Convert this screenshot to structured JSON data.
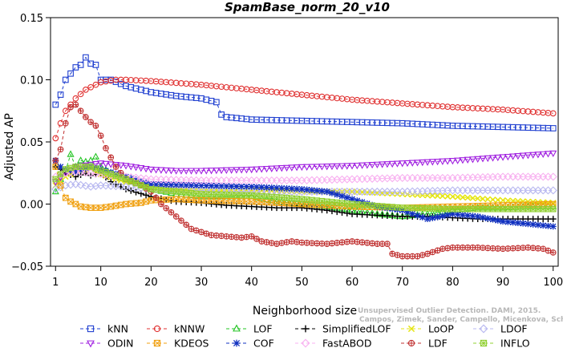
{
  "chart_data": {
    "type": "line",
    "title": "SpamBase_norm_20_v10",
    "xlabel": "Neighborhood size",
    "ylabel": "Adjusted AP",
    "xlim": [
      0,
      101
    ],
    "ylim": [
      -0.05,
      0.15
    ],
    "xticks": [
      1,
      10,
      20,
      30,
      40,
      50,
      60,
      70,
      80,
      90,
      100
    ],
    "yticks": [
      -0.05,
      0.0,
      0.05,
      0.1,
      0.15
    ],
    "ytick_labels": [
      "−0.05",
      "0.00",
      "0.05",
      "0.10",
      "0.15"
    ],
    "legend_position": "bottom",
    "watermark": "Campos, Zimek, Sander, Campello, Micenkova, Schubert, Assent, Houle",
    "watermark_line1": "Unsupervised Outlier Detection. DAMI, 2015.",
    "series": [
      {
        "name": "kNN",
        "color": "#1f3fd0",
        "marker": "square",
        "dash": "4,3",
        "points": [
          [
            1,
            0.08
          ],
          [
            2,
            0.088
          ],
          [
            3,
            0.1
          ],
          [
            4,
            0.105
          ],
          [
            5,
            0.11
          ],
          [
            6,
            0.112
          ],
          [
            7,
            0.118
          ],
          [
            8,
            0.113
          ],
          [
            9,
            0.112
          ],
          [
            10,
            0.1
          ],
          [
            12,
            0.1
          ],
          [
            15,
            0.095
          ],
          [
            20,
            0.09
          ],
          [
            25,
            0.087
          ],
          [
            30,
            0.085
          ],
          [
            33,
            0.082
          ],
          [
            34,
            0.072
          ],
          [
            35,
            0.07
          ],
          [
            40,
            0.068
          ],
          [
            50,
            0.067
          ],
          [
            60,
            0.066
          ],
          [
            70,
            0.065
          ],
          [
            80,
            0.063
          ],
          [
            90,
            0.062
          ],
          [
            100,
            0.061
          ]
        ]
      },
      {
        "name": "kNNW",
        "color": "#e03030",
        "marker": "circle",
        "dash": "4,3",
        "points": [
          [
            1,
            0.053
          ],
          [
            2,
            0.065
          ],
          [
            3,
            0.075
          ],
          [
            4,
            0.08
          ],
          [
            5,
            0.085
          ],
          [
            7,
            0.092
          ],
          [
            10,
            0.098
          ],
          [
            13,
            0.1
          ],
          [
            15,
            0.1
          ],
          [
            20,
            0.099
          ],
          [
            30,
            0.096
          ],
          [
            40,
            0.092
          ],
          [
            50,
            0.088
          ],
          [
            60,
            0.084
          ],
          [
            70,
            0.081
          ],
          [
            80,
            0.078
          ],
          [
            90,
            0.076
          ],
          [
            100,
            0.073
          ]
        ]
      },
      {
        "name": "LOF",
        "color": "#22c422",
        "marker": "triangle",
        "dash": "4,3",
        "points": [
          [
            1,
            0.01
          ],
          [
            2,
            0.02
          ],
          [
            3,
            0.027
          ],
          [
            4,
            0.04
          ],
          [
            5,
            0.03
          ],
          [
            6,
            0.035
          ],
          [
            7,
            0.034
          ],
          [
            8,
            0.035
          ],
          [
            9,
            0.038
          ],
          [
            10,
            0.03
          ],
          [
            12,
            0.025
          ],
          [
            15,
            0.02
          ],
          [
            20,
            0.012
          ],
          [
            25,
            0.008
          ],
          [
            30,
            0.006
          ],
          [
            35,
            0.006
          ],
          [
            40,
            0.006
          ],
          [
            45,
            0.002
          ],
          [
            50,
            0.0
          ],
          [
            55,
            -0.002
          ],
          [
            60,
            -0.005
          ],
          [
            65,
            -0.008
          ],
          [
            70,
            -0.01
          ],
          [
            75,
            -0.008
          ],
          [
            80,
            -0.005
          ],
          [
            85,
            -0.003
          ],
          [
            90,
            -0.003
          ],
          [
            95,
            -0.002
          ],
          [
            100,
            -0.002
          ]
        ]
      },
      {
        "name": "SimplifiedLOF",
        "color": "#000000",
        "marker": "plus",
        "dash": "4,3",
        "points": [
          [
            1,
            0.03
          ],
          [
            2,
            0.028
          ],
          [
            3,
            0.025
          ],
          [
            5,
            0.022
          ],
          [
            7,
            0.025
          ],
          [
            8,
            0.023
          ],
          [
            10,
            0.025
          ],
          [
            12,
            0.018
          ],
          [
            15,
            0.012
          ],
          [
            20,
            0.006
          ],
          [
            25,
            0.002
          ],
          [
            30,
            0.001
          ],
          [
            35,
            -0.001
          ],
          [
            40,
            -0.002
          ],
          [
            45,
            -0.003
          ],
          [
            50,
            -0.003
          ],
          [
            55,
            -0.005
          ],
          [
            60,
            -0.008
          ],
          [
            65,
            -0.009
          ],
          [
            70,
            -0.01
          ],
          [
            75,
            -0.01
          ],
          [
            80,
            -0.011
          ],
          [
            85,
            -0.012
          ],
          [
            90,
            -0.012
          ],
          [
            95,
            -0.012
          ],
          [
            100,
            -0.012
          ]
        ]
      },
      {
        "name": "LoOP",
        "color": "#e5e510",
        "marker": "x",
        "dash": "4,3",
        "points": [
          [
            1,
            0.015
          ],
          [
            3,
            0.022
          ],
          [
            5,
            0.026
          ],
          [
            8,
            0.028
          ],
          [
            10,
            0.024
          ],
          [
            15,
            0.018
          ],
          [
            20,
            0.013
          ],
          [
            25,
            0.012
          ],
          [
            30,
            0.011
          ],
          [
            40,
            0.011
          ],
          [
            50,
            0.01
          ],
          [
            60,
            0.01
          ],
          [
            70,
            0.008
          ],
          [
            80,
            0.006
          ],
          [
            90,
            0.003
          ],
          [
            100,
            0.001
          ]
        ]
      },
      {
        "name": "LDOF",
        "color": "#b8b8f0",
        "marker": "diamond",
        "dash": "4,3",
        "points": [
          [
            1,
            0.012
          ],
          [
            3,
            0.015
          ],
          [
            5,
            0.016
          ],
          [
            8,
            0.014
          ],
          [
            10,
            0.015
          ],
          [
            15,
            0.014
          ],
          [
            20,
            0.012
          ],
          [
            30,
            0.011
          ],
          [
            40,
            0.01
          ],
          [
            50,
            0.01
          ],
          [
            60,
            0.01
          ],
          [
            70,
            0.01
          ],
          [
            80,
            0.011
          ],
          [
            90,
            0.011
          ],
          [
            100,
            0.011
          ]
        ]
      },
      {
        "name": "ODIN",
        "color": "#a020e0",
        "marker": "triangle-down",
        "dash": "4,3",
        "points": [
          [
            1,
            0.018
          ],
          [
            3,
            0.025
          ],
          [
            5,
            0.03
          ],
          [
            8,
            0.032
          ],
          [
            10,
            0.033
          ],
          [
            15,
            0.031
          ],
          [
            20,
            0.028
          ],
          [
            25,
            0.027
          ],
          [
            30,
            0.027
          ],
          [
            40,
            0.028
          ],
          [
            50,
            0.03
          ],
          [
            60,
            0.031
          ],
          [
            70,
            0.033
          ],
          [
            80,
            0.035
          ],
          [
            90,
            0.038
          ],
          [
            100,
            0.041
          ]
        ]
      },
      {
        "name": "KDEOS",
        "color": "#f0a010",
        "marker": "square-x",
        "dash": "4,3",
        "points": [
          [
            1,
            0.03
          ],
          [
            2,
            0.015
          ],
          [
            3,
            0.005
          ],
          [
            4,
            0.002
          ],
          [
            5,
            0.0
          ],
          [
            6,
            -0.002
          ],
          [
            8,
            -0.003
          ],
          [
            10,
            -0.003
          ],
          [
            12,
            -0.002
          ],
          [
            15,
            0.0
          ],
          [
            18,
            0.001
          ],
          [
            20,
            0.003
          ],
          [
            25,
            0.004
          ],
          [
            30,
            0.003
          ],
          [
            40,
            0.002
          ],
          [
            50,
            0.0
          ],
          [
            60,
            -0.002
          ],
          [
            70,
            -0.003
          ],
          [
            80,
            -0.002
          ],
          [
            90,
            -0.001
          ],
          [
            100,
            0.0
          ]
        ]
      },
      {
        "name": "COF",
        "color": "#1030c0",
        "marker": "star",
        "dash": "4,3",
        "points": [
          [
            1,
            0.035
          ],
          [
            2,
            0.03
          ],
          [
            3,
            0.028
          ],
          [
            5,
            0.026
          ],
          [
            8,
            0.03
          ],
          [
            10,
            0.028
          ],
          [
            15,
            0.022
          ],
          [
            20,
            0.016
          ],
          [
            30,
            0.015
          ],
          [
            40,
            0.014
          ],
          [
            50,
            0.012
          ],
          [
            55,
            0.01
          ],
          [
            60,
            0.004
          ],
          [
            65,
            -0.002
          ],
          [
            70,
            -0.005
          ],
          [
            75,
            -0.012
          ],
          [
            80,
            -0.008
          ],
          [
            85,
            -0.01
          ],
          [
            90,
            -0.014
          ],
          [
            95,
            -0.016
          ],
          [
            100,
            -0.018
          ]
        ]
      },
      {
        "name": "FastABOD",
        "color": "#f8b0f0",
        "marker": "diamond",
        "dash": "4,3",
        "points": [
          [
            1,
            0.022
          ],
          [
            3,
            0.025
          ],
          [
            5,
            0.026
          ],
          [
            8,
            0.025
          ],
          [
            10,
            0.024
          ],
          [
            15,
            0.022
          ],
          [
            20,
            0.02
          ],
          [
            30,
            0.019
          ],
          [
            40,
            0.019
          ],
          [
            50,
            0.019
          ],
          [
            60,
            0.02
          ],
          [
            70,
            0.021
          ],
          [
            80,
            0.021
          ],
          [
            90,
            0.022
          ],
          [
            100,
            0.022
          ]
        ]
      },
      {
        "name": "LDF",
        "color": "#c03030",
        "marker": "circle-plus",
        "dash": "4,3",
        "points": [
          [
            1,
            0.035
          ],
          [
            2,
            0.044
          ],
          [
            3,
            0.065
          ],
          [
            4,
            0.078
          ],
          [
            5,
            0.08
          ],
          [
            6,
            0.075
          ],
          [
            7,
            0.07
          ],
          [
            8,
            0.066
          ],
          [
            9,
            0.063
          ],
          [
            10,
            0.055
          ],
          [
            11,
            0.045
          ],
          [
            13,
            0.03
          ],
          [
            15,
            0.02
          ],
          [
            18,
            0.015
          ],
          [
            20,
            0.01
          ],
          [
            22,
            0.0
          ],
          [
            25,
            -0.01
          ],
          [
            28,
            -0.02
          ],
          [
            32,
            -0.025
          ],
          [
            38,
            -0.027
          ],
          [
            40,
            -0.026
          ],
          [
            42,
            -0.03
          ],
          [
            45,
            -0.032
          ],
          [
            48,
            -0.03
          ],
          [
            50,
            -0.031
          ],
          [
            55,
            -0.032
          ],
          [
            60,
            -0.03
          ],
          [
            65,
            -0.032
          ],
          [
            67,
            -0.032
          ],
          [
            68,
            -0.04
          ],
          [
            70,
            -0.042
          ],
          [
            73,
            -0.042
          ],
          [
            75,
            -0.04
          ],
          [
            78,
            -0.036
          ],
          [
            80,
            -0.035
          ],
          [
            85,
            -0.035
          ],
          [
            90,
            -0.036
          ],
          [
            95,
            -0.035
          ],
          [
            98,
            -0.036
          ],
          [
            100,
            -0.039
          ]
        ]
      },
      {
        "name": "INFLO",
        "color": "#90d030",
        "marker": "square-star",
        "dash": "4,3",
        "points": [
          [
            1,
            0.02
          ],
          [
            3,
            0.028
          ],
          [
            5,
            0.03
          ],
          [
            8,
            0.03
          ],
          [
            10,
            0.027
          ],
          [
            15,
            0.02
          ],
          [
            20,
            0.012
          ],
          [
            25,
            0.01
          ],
          [
            30,
            0.008
          ],
          [
            40,
            0.007
          ],
          [
            50,
            0.004
          ],
          [
            60,
            0.0
          ],
          [
            70,
            -0.003
          ],
          [
            80,
            -0.004
          ],
          [
            90,
            -0.004
          ],
          [
            100,
            -0.004
          ]
        ]
      }
    ]
  }
}
